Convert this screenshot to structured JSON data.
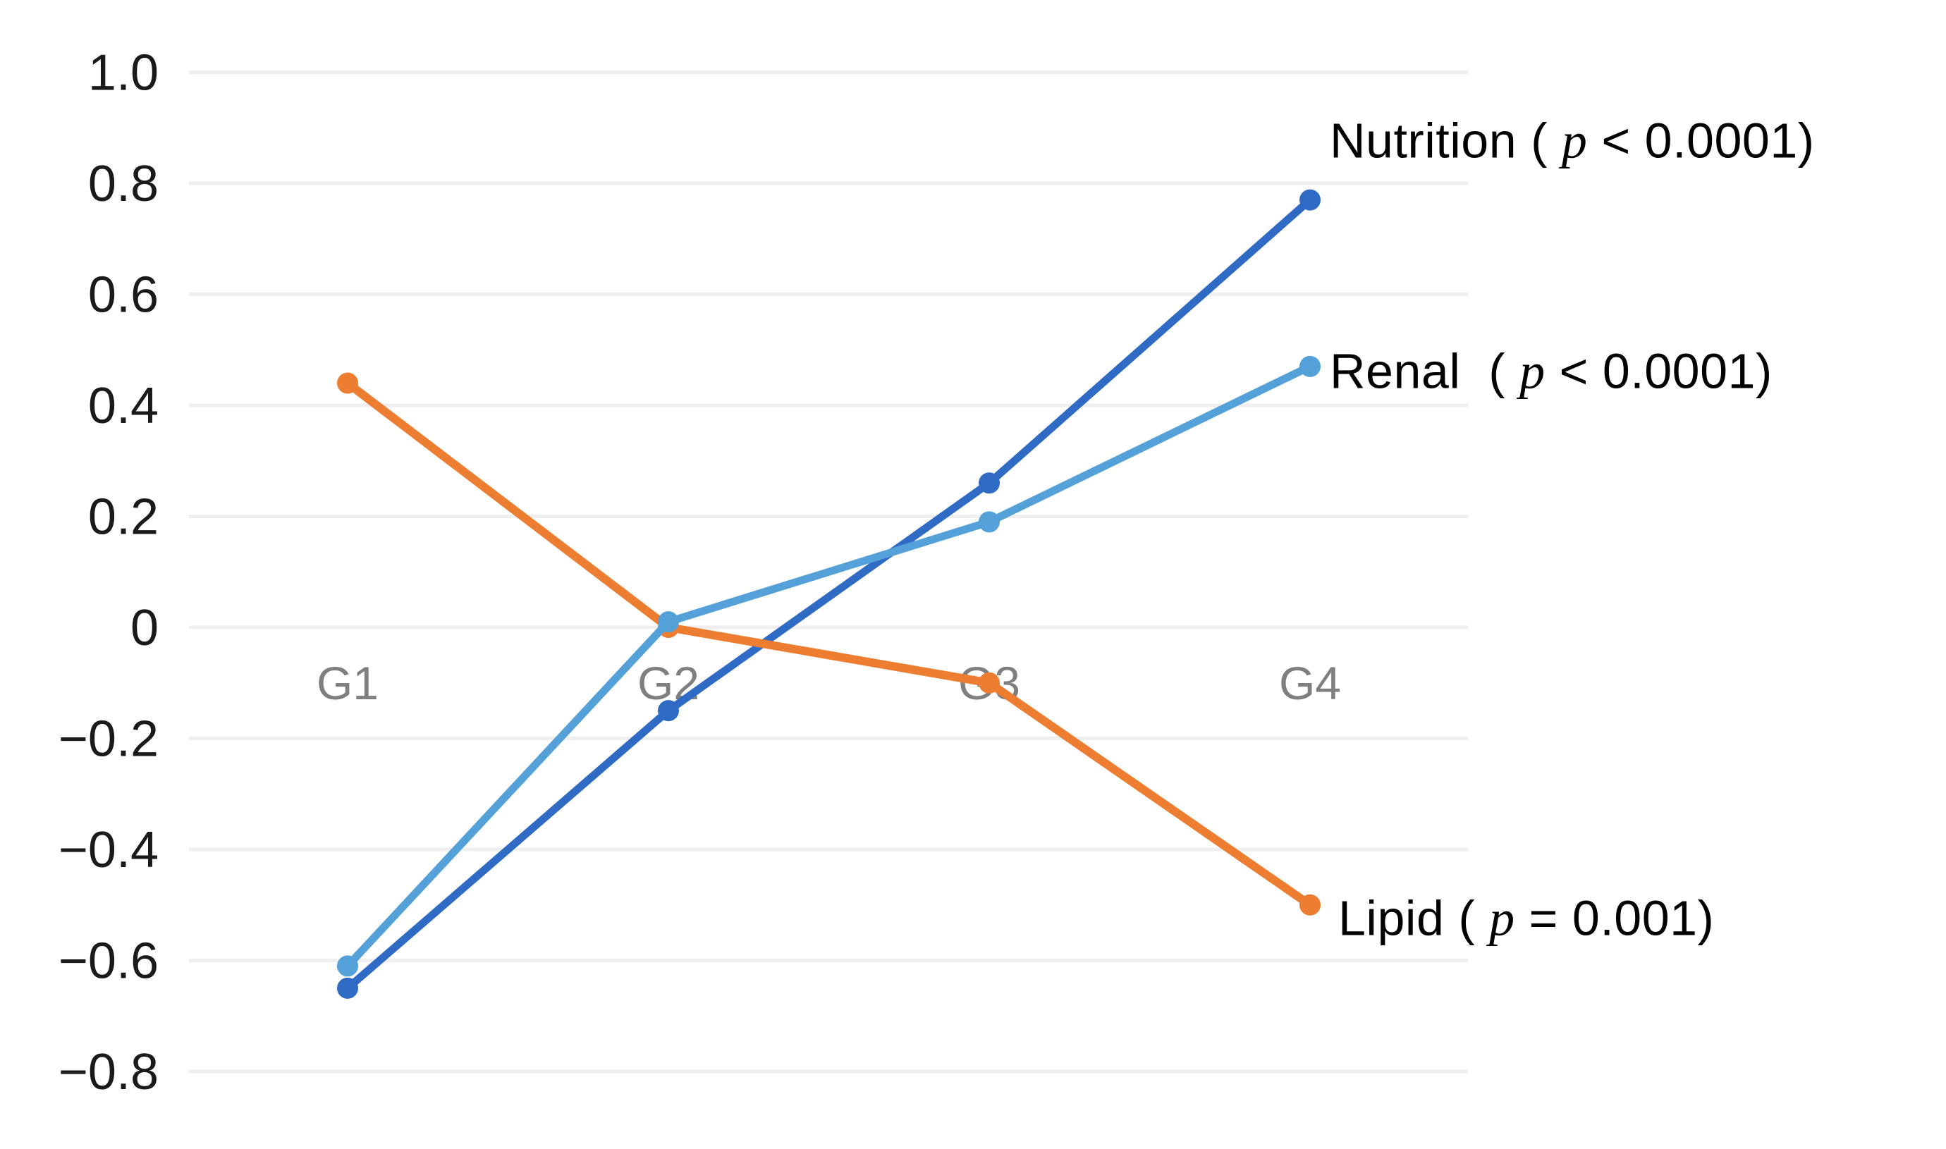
{
  "chart_data": {
    "type": "line",
    "categories": [
      "G1",
      "G2",
      "G3",
      "G4"
    ],
    "series": [
      {
        "name": "Nutrition",
        "color": "#2f6bc5",
        "values": [
          -0.65,
          -0.15,
          0.26,
          0.77
        ],
        "label_pre": "Nutrition ( ",
        "label_p": "p",
        "label_post": " < 0.0001)",
        "label_full": "Nutrition ( p < 0.0001)"
      },
      {
        "name": "Renal",
        "color": "#54a0d8",
        "values": [
          -0.61,
          0.01,
          0.19,
          0.47
        ],
        "label_pre": "Renal  ( ",
        "label_p": "p",
        "label_post": " < 0.0001)",
        "label_full": "Renal  ( p < 0.0001)"
      },
      {
        "name": "Lipid",
        "color": "#ed7d31",
        "values": [
          0.44,
          0.0,
          -0.1,
          -0.5
        ],
        "label_pre": "Lipid ( ",
        "label_p": "p",
        "label_post": " = 0.001)",
        "label_full": "Lipid ( p = 0.001)"
      }
    ],
    "ylim": [
      -0.8,
      1.0
    ],
    "ytick_step": 0.2,
    "ytick_labels": [
      "1.0",
      "0.8",
      "0.6",
      "0.4",
      "0.2",
      "0",
      "−0.2",
      "−0.4",
      "−0.6",
      "−0.8"
    ],
    "grid": true,
    "legend_position": "right-of-line-ends",
    "marker": "circle"
  },
  "colors": {
    "grid": "#efefef",
    "ytick_text": "#1a1a1a",
    "category_text": "#7f7f7f",
    "legend_text": "#000000",
    "background": "#ffffff"
  }
}
